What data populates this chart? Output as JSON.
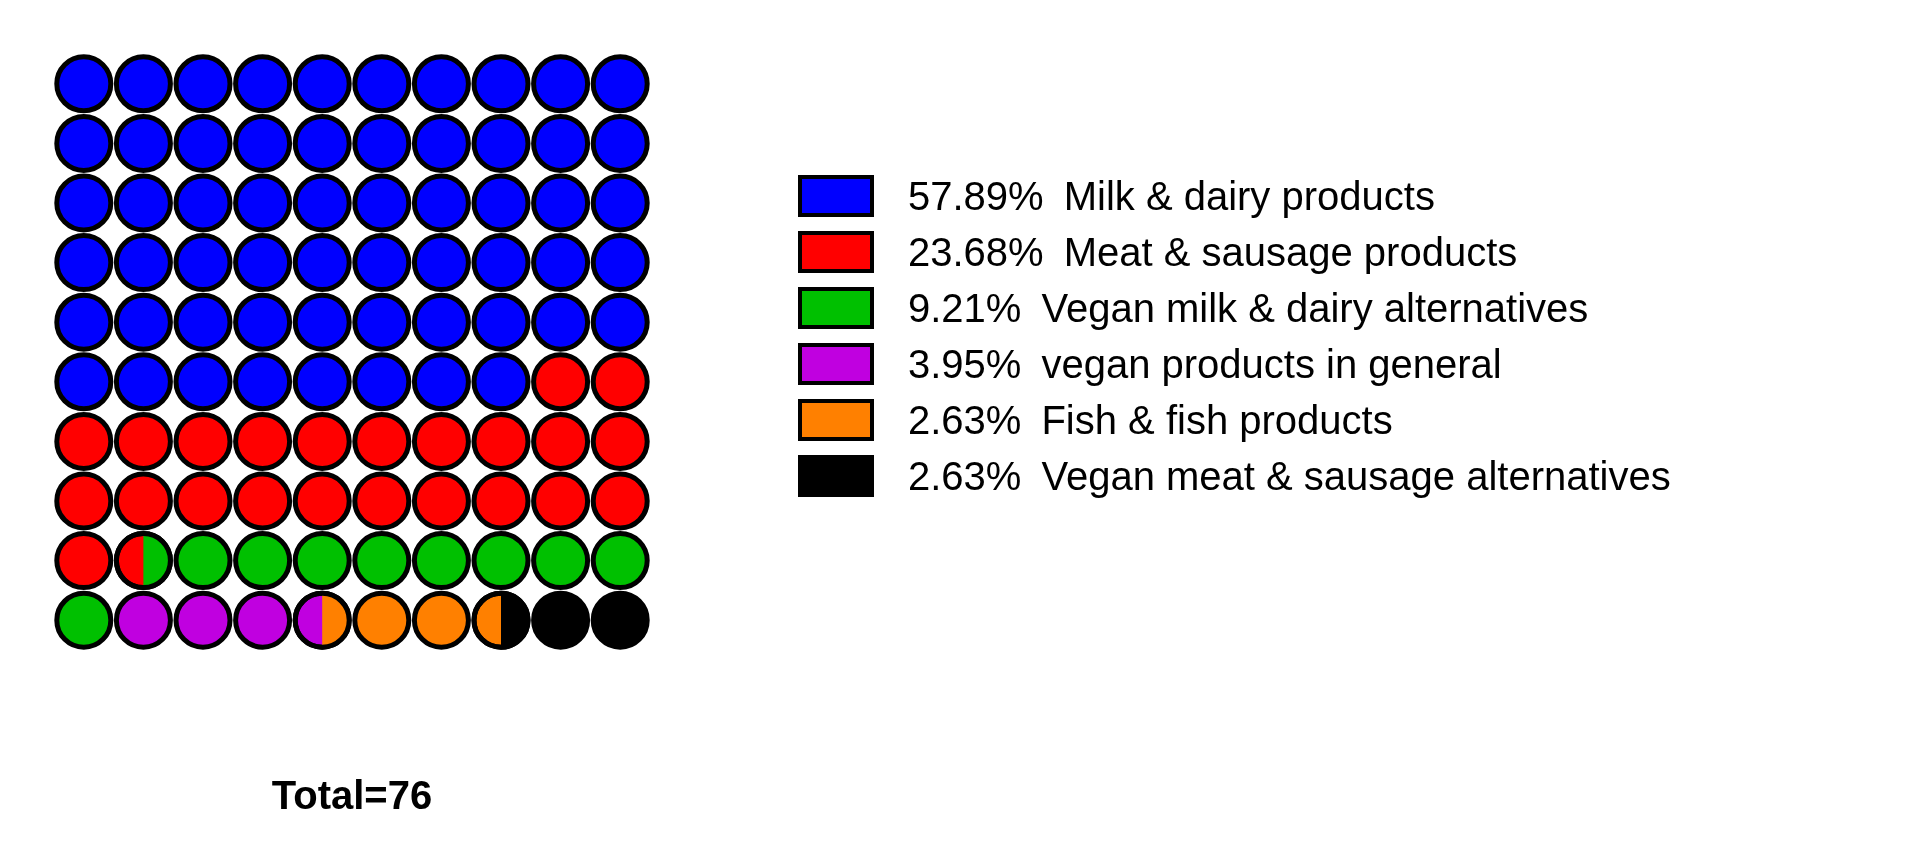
{
  "chart_data": {
    "type": "other",
    "categories": [
      "Milk & dairy products",
      "Meat & sausage products",
      "Vegan milk & dairy alternatives",
      "vegan products in general",
      "Fish & fish products",
      "Vegan meat & sausage alternatives"
    ],
    "values": [
      57.89,
      23.68,
      9.21,
      3.95,
      2.63,
      2.63
    ],
    "value_labels": [
      "57.89%",
      "23.68%",
      "9.21%",
      "3.95%",
      "2.63%",
      "2.63%"
    ],
    "colors": [
      "#0000ff",
      "#ff0000",
      "#00c000",
      "#c000e0",
      "#ff8000",
      "#000000"
    ],
    "annotations": [
      "Total=76"
    ]
  }
}
